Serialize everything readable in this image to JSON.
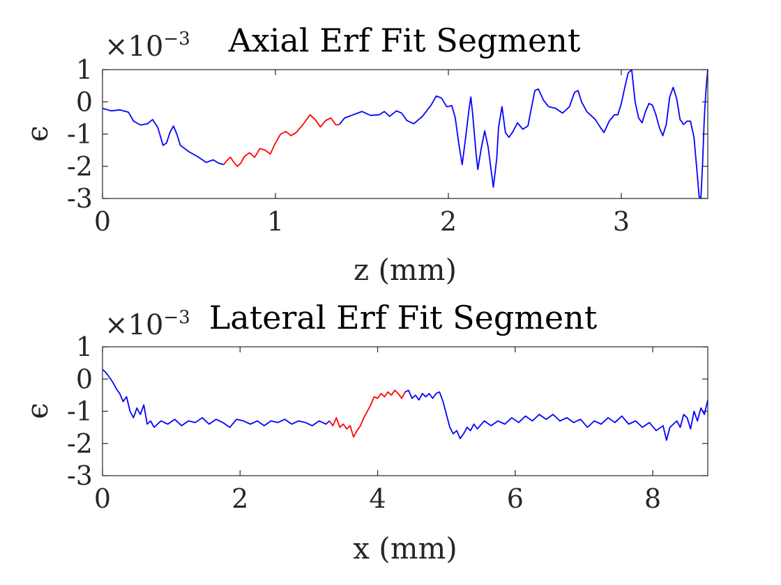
{
  "chart_data": [
    {
      "type": "line",
      "title": "Axial Erf Fit Segment",
      "xlabel": "z (mm)",
      "ylabel": "ϵ",
      "multiplier": "×10",
      "multiplier_exp": "−3",
      "xlim": [
        0,
        3.5
      ],
      "ylim": [
        -3,
        1
      ],
      "xticks": [
        0,
        1,
        2,
        3
      ],
      "xtick_labels": [
        "0",
        "1",
        "2",
        "3"
      ],
      "yticks": [
        1,
        0,
        -1,
        -2,
        -3
      ],
      "ytick_labels": [
        "1",
        "0",
        "-1",
        "-2",
        "-3"
      ],
      "series": [
        {
          "color": "#0000ff",
          "points": [
            [
              0,
              -0.2
            ],
            [
              0.05,
              -0.28
            ],
            [
              0.1,
              -0.25
            ],
            [
              0.15,
              -0.32
            ],
            [
              0.18,
              -0.6
            ],
            [
              0.22,
              -0.72
            ],
            [
              0.26,
              -0.68
            ],
            [
              0.29,
              -0.55
            ],
            [
              0.32,
              -0.8
            ],
            [
              0.35,
              -1.35
            ],
            [
              0.37,
              -1.28
            ],
            [
              0.39,
              -0.95
            ],
            [
              0.41,
              -0.75
            ],
            [
              0.43,
              -1.0
            ],
            [
              0.45,
              -1.35
            ],
            [
              0.5,
              -1.55
            ],
            [
              0.55,
              -1.7
            ],
            [
              0.6,
              -1.88
            ],
            [
              0.64,
              -1.8
            ],
            [
              0.67,
              -1.9
            ],
            [
              0.7,
              -1.95
            ]
          ]
        },
        {
          "color": "#ff0000",
          "points": [
            [
              0.7,
              -1.95
            ],
            [
              0.72,
              -1.82
            ],
            [
              0.74,
              -1.72
            ],
            [
              0.76,
              -1.88
            ],
            [
              0.78,
              -2.0
            ],
            [
              0.8,
              -1.9
            ],
            [
              0.82,
              -1.7
            ],
            [
              0.85,
              -1.58
            ],
            [
              0.88,
              -1.72
            ],
            [
              0.91,
              -1.45
            ],
            [
              0.94,
              -1.5
            ],
            [
              0.97,
              -1.62
            ],
            [
              1.0,
              -1.28
            ],
            [
              1.03,
              -1.0
            ],
            [
              1.06,
              -0.92
            ],
            [
              1.09,
              -1.05
            ],
            [
              1.12,
              -0.95
            ],
            [
              1.16,
              -0.7
            ],
            [
              1.2,
              -0.4
            ],
            [
              1.23,
              -0.55
            ],
            [
              1.26,
              -0.78
            ],
            [
              1.29,
              -0.58
            ],
            [
              1.32,
              -0.5
            ],
            [
              1.35,
              -0.72
            ],
            [
              1.37,
              -0.7
            ]
          ]
        },
        {
          "color": "#0000ff",
          "points": [
            [
              1.37,
              -0.7
            ],
            [
              1.4,
              -0.5
            ],
            [
              1.45,
              -0.4
            ],
            [
              1.5,
              -0.3
            ],
            [
              1.55,
              -0.42
            ],
            [
              1.6,
              -0.4
            ],
            [
              1.63,
              -0.3
            ],
            [
              1.66,
              -0.45
            ],
            [
              1.7,
              -0.28
            ],
            [
              1.73,
              -0.35
            ],
            [
              1.76,
              -0.58
            ],
            [
              1.8,
              -0.68
            ],
            [
              1.85,
              -0.45
            ],
            [
              1.9,
              -0.1
            ],
            [
              1.93,
              0.18
            ],
            [
              1.96,
              0.12
            ],
            [
              1.99,
              -0.15
            ],
            [
              2.02,
              -0.12
            ],
            [
              2.04,
              -0.5
            ],
            [
              2.06,
              -1.3
            ],
            [
              2.08,
              -1.95
            ],
            [
              2.1,
              -1.1
            ],
            [
              2.12,
              -0.2
            ],
            [
              2.13,
              0.15
            ],
            [
              2.14,
              -0.35
            ],
            [
              2.16,
              -1.6
            ],
            [
              2.17,
              -2.1
            ],
            [
              2.19,
              -1.45
            ],
            [
              2.21,
              -0.9
            ],
            [
              2.23,
              -1.4
            ],
            [
              2.26,
              -2.65
            ],
            [
              2.28,
              -1.75
            ],
            [
              2.29,
              -0.8
            ],
            [
              2.31,
              -0.15
            ],
            [
              2.33,
              -0.95
            ],
            [
              2.35,
              -1.1
            ],
            [
              2.37,
              -0.95
            ],
            [
              2.4,
              -0.65
            ],
            [
              2.43,
              -0.85
            ],
            [
              2.46,
              -0.75
            ],
            [
              2.48,
              -0.2
            ],
            [
              2.5,
              0.35
            ],
            [
              2.52,
              0.4
            ],
            [
              2.55,
              0.05
            ],
            [
              2.58,
              -0.15
            ],
            [
              2.62,
              -0.2
            ],
            [
              2.66,
              -0.35
            ],
            [
              2.7,
              -0.15
            ],
            [
              2.73,
              0.3
            ],
            [
              2.75,
              0.35
            ],
            [
              2.77,
              0.0
            ],
            [
              2.8,
              -0.3
            ],
            [
              2.85,
              -0.55
            ],
            [
              2.88,
              -0.8
            ],
            [
              2.9,
              -0.95
            ],
            [
              2.93,
              -0.6
            ],
            [
              2.96,
              -0.4
            ],
            [
              2.98,
              -0.4
            ],
            [
              3.0,
              -0.05
            ],
            [
              3.02,
              0.45
            ],
            [
              3.04,
              0.9
            ],
            [
              3.06,
              1.0
            ],
            [
              3.08,
              0.0
            ],
            [
              3.1,
              -0.5
            ],
            [
              3.12,
              -0.65
            ],
            [
              3.14,
              -0.3
            ],
            [
              3.16,
              -0.05
            ],
            [
              3.18,
              -0.1
            ],
            [
              3.2,
              -0.4
            ],
            [
              3.22,
              -0.8
            ],
            [
              3.24,
              -1.05
            ],
            [
              3.26,
              -0.7
            ],
            [
              3.28,
              0.15
            ],
            [
              3.3,
              0.45
            ],
            [
              3.32,
              0.1
            ],
            [
              3.34,
              -0.55
            ],
            [
              3.36,
              -0.7
            ],
            [
              3.38,
              -0.6
            ],
            [
              3.4,
              -0.6
            ],
            [
              3.42,
              -1.1
            ],
            [
              3.44,
              -2.3
            ],
            [
              3.45,
              -2.95
            ],
            [
              3.46,
              -3.0
            ],
            [
              3.47,
              -1.9
            ],
            [
              3.48,
              -0.5
            ],
            [
              3.49,
              0.4
            ],
            [
              3.5,
              1.0
            ]
          ]
        }
      ]
    },
    {
      "type": "line",
      "title": "Lateral Erf Fit Segment",
      "xlabel": "x (mm)",
      "ylabel": "ϵ",
      "multiplier": "×10",
      "multiplier_exp": "−3",
      "xlim": [
        0,
        8.8
      ],
      "ylim": [
        -3,
        1
      ],
      "xticks": [
        0,
        2,
        4,
        6,
        8
      ],
      "xtick_labels": [
        "0",
        "2",
        "4",
        "6",
        "8"
      ],
      "yticks": [
        1,
        0,
        -1,
        -2,
        -3
      ],
      "ytick_labels": [
        "1",
        "0",
        "-1",
        "-2",
        "-3"
      ],
      "series": [
        {
          "color": "#0000ff",
          "points": [
            [
              0,
              0.3
            ],
            [
              0.05,
              0.2
            ],
            [
              0.1,
              0.05
            ],
            [
              0.15,
              -0.1
            ],
            [
              0.2,
              -0.3
            ],
            [
              0.25,
              -0.45
            ],
            [
              0.3,
              -0.7
            ],
            [
              0.35,
              -0.55
            ],
            [
              0.4,
              -1.0
            ],
            [
              0.45,
              -1.2
            ],
            [
              0.5,
              -0.9
            ],
            [
              0.55,
              -1.1
            ],
            [
              0.6,
              -0.8
            ],
            [
              0.65,
              -1.4
            ],
            [
              0.7,
              -1.3
            ],
            [
              0.75,
              -1.5
            ],
            [
              0.85,
              -1.3
            ],
            [
              0.95,
              -1.4
            ],
            [
              1.05,
              -1.25
            ],
            [
              1.15,
              -1.45
            ],
            [
              1.25,
              -1.3
            ],
            [
              1.35,
              -1.35
            ],
            [
              1.45,
              -1.2
            ],
            [
              1.55,
              -1.4
            ],
            [
              1.65,
              -1.25
            ],
            [
              1.75,
              -1.35
            ],
            [
              1.85,
              -1.5
            ],
            [
              1.95,
              -1.25
            ],
            [
              2.05,
              -1.3
            ],
            [
              2.15,
              -1.4
            ],
            [
              2.25,
              -1.3
            ],
            [
              2.35,
              -1.45
            ],
            [
              2.45,
              -1.3
            ],
            [
              2.55,
              -1.35
            ],
            [
              2.65,
              -1.25
            ],
            [
              2.75,
              -1.4
            ],
            [
              2.85,
              -1.3
            ],
            [
              2.95,
              -1.35
            ],
            [
              3.05,
              -1.45
            ],
            [
              3.15,
              -1.3
            ],
            [
              3.25,
              -1.4
            ],
            [
              3.3,
              -1.3
            ]
          ]
        },
        {
          "color": "#ff0000",
          "points": [
            [
              3.3,
              -1.3
            ],
            [
              3.35,
              -1.45
            ],
            [
              3.4,
              -1.2
            ],
            [
              3.45,
              -1.5
            ],
            [
              3.5,
              -1.4
            ],
            [
              3.55,
              -1.55
            ],
            [
              3.6,
              -1.45
            ],
            [
              3.65,
              -1.8
            ],
            [
              3.7,
              -1.6
            ],
            [
              3.75,
              -1.45
            ],
            [
              3.8,
              -1.2
            ],
            [
              3.85,
              -1.0
            ],
            [
              3.9,
              -0.8
            ],
            [
              3.95,
              -0.55
            ],
            [
              4.0,
              -0.6
            ],
            [
              4.05,
              -0.45
            ],
            [
              4.1,
              -0.55
            ],
            [
              4.15,
              -0.4
            ],
            [
              4.2,
              -0.5
            ],
            [
              4.25,
              -0.35
            ],
            [
              4.3,
              -0.45
            ],
            [
              4.35,
              -0.6
            ],
            [
              4.4,
              -0.4
            ]
          ]
        },
        {
          "color": "#0000ff",
          "points": [
            [
              4.4,
              -0.4
            ],
            [
              4.45,
              -0.35
            ],
            [
              4.5,
              -0.6
            ],
            [
              4.55,
              -0.5
            ],
            [
              4.6,
              -0.65
            ],
            [
              4.65,
              -0.45
            ],
            [
              4.7,
              -0.55
            ],
            [
              4.75,
              -0.45
            ],
            [
              4.8,
              -0.6
            ],
            [
              4.85,
              -0.45
            ],
            [
              4.9,
              -0.4
            ],
            [
              4.95,
              -0.7
            ],
            [
              5.0,
              -1.1
            ],
            [
              5.05,
              -1.5
            ],
            [
              5.1,
              -1.7
            ],
            [
              5.15,
              -1.6
            ],
            [
              5.2,
              -1.85
            ],
            [
              5.25,
              -1.7
            ],
            [
              5.3,
              -1.5
            ],
            [
              5.35,
              -1.6
            ],
            [
              5.4,
              -1.4
            ],
            [
              5.45,
              -1.55
            ],
            [
              5.55,
              -1.3
            ],
            [
              5.65,
              -1.45
            ],
            [
              5.75,
              -1.3
            ],
            [
              5.85,
              -1.4
            ],
            [
              5.95,
              -1.2
            ],
            [
              6.05,
              -1.35
            ],
            [
              6.15,
              -1.15
            ],
            [
              6.25,
              -1.3
            ],
            [
              6.35,
              -1.1
            ],
            [
              6.45,
              -1.25
            ],
            [
              6.55,
              -1.1
            ],
            [
              6.65,
              -1.3
            ],
            [
              6.75,
              -1.2
            ],
            [
              6.85,
              -1.35
            ],
            [
              6.95,
              -1.25
            ],
            [
              7.05,
              -1.5
            ],
            [
              7.15,
              -1.3
            ],
            [
              7.25,
              -1.4
            ],
            [
              7.35,
              -1.2
            ],
            [
              7.45,
              -1.35
            ],
            [
              7.55,
              -1.15
            ],
            [
              7.65,
              -1.4
            ],
            [
              7.75,
              -1.3
            ],
            [
              7.85,
              -1.5
            ],
            [
              7.95,
              -1.35
            ],
            [
              8.05,
              -1.6
            ],
            [
              8.15,
              -1.45
            ],
            [
              8.2,
              -1.9
            ],
            [
              8.25,
              -1.5
            ],
            [
              8.35,
              -1.3
            ],
            [
              8.4,
              -1.5
            ],
            [
              8.45,
              -1.1
            ],
            [
              8.5,
              -1.2
            ],
            [
              8.55,
              -1.55
            ],
            [
              8.6,
              -1.0
            ],
            [
              8.65,
              -1.3
            ],
            [
              8.7,
              -0.9
            ],
            [
              8.75,
              -1.1
            ],
            [
              8.8,
              -0.65
            ]
          ]
        }
      ]
    }
  ]
}
